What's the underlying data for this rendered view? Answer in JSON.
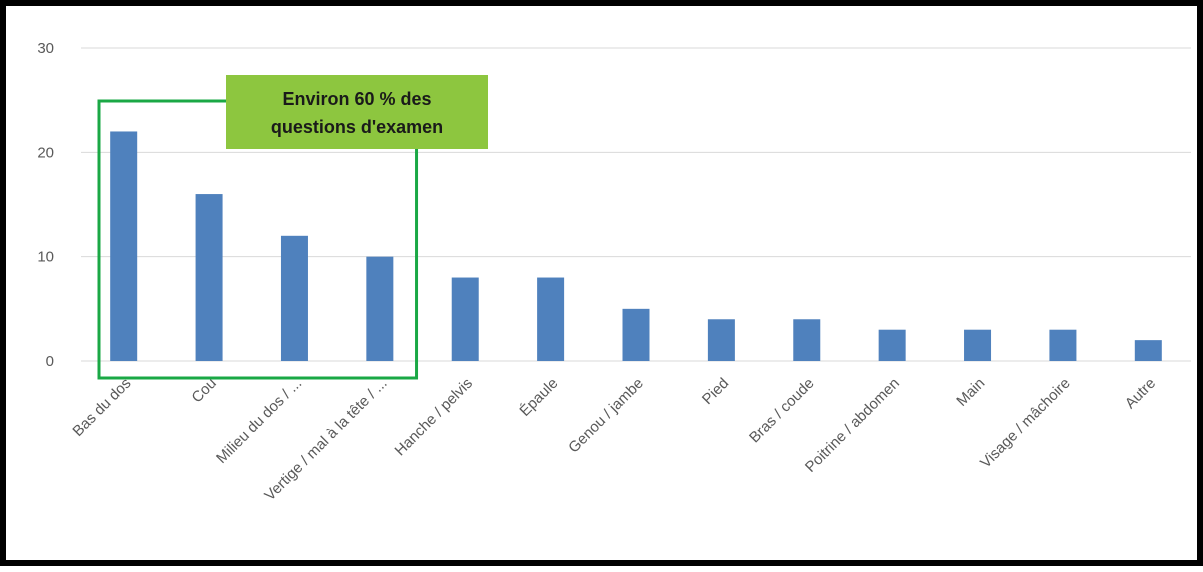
{
  "chart_data": {
    "type": "bar",
    "categories": [
      "Bas du dos",
      "Cou",
      "Milieu du dos / ...",
      "Vertige / mal à la tête / ...",
      "Hanche / pelvis",
      "Épaule",
      "Genou / jambe",
      "Pied",
      "Bras / coude",
      "Poitrine / abdomen",
      "Main",
      "Visage / mâchoire",
      "Autre"
    ],
    "values": [
      22,
      16,
      12,
      10,
      8,
      8,
      5,
      4,
      4,
      3,
      3,
      3,
      2
    ],
    "yticks": [
      "0",
      "10",
      "20",
      "30"
    ],
    "ylim": [
      0,
      30
    ],
    "grid": true,
    "bar_color": "#4f81bd",
    "title": "",
    "xlabel": "",
    "ylabel": "",
    "annotation": {
      "lines": [
        "Environ 60 % des",
        "questions d'examen"
      ],
      "background": "#8dc63f",
      "box_color": "#1aa845",
      "covers_categories": [
        0,
        3
      ]
    }
  }
}
